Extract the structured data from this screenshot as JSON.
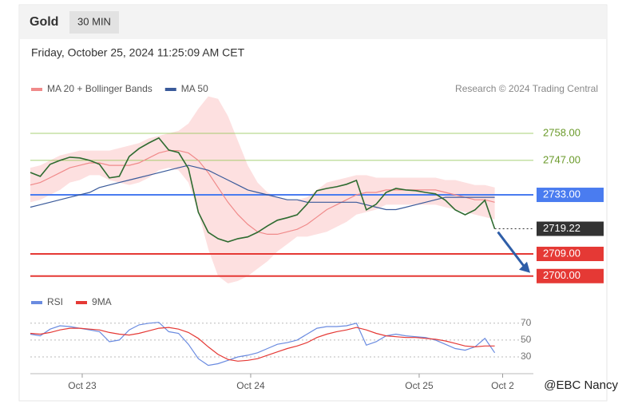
{
  "header": {
    "title": "Gold",
    "timeframe": "30 MIN",
    "timestamp": "Friday, October 25, 2024 11:25:09 AM CET",
    "credit": "Research © 2024 Trading Central",
    "watermark": "@EBC Nancy"
  },
  "chart_data": [
    {
      "type": "line",
      "xlim": [
        0,
        48
      ],
      "ylim": [
        2697,
        2770
      ],
      "price": {
        "color": "#2e6b30",
        "values": [
          2742.1,
          2740.5,
          2745.4,
          2747,
          2748.3,
          2748,
          2747,
          2745.4,
          2739.9,
          2740.5,
          2748.6,
          2751.8,
          2754.1,
          2756.1,
          2751.2,
          2750.2,
          2743.7,
          2725.9,
          2717.8,
          2715.2,
          2713.9,
          2715.2,
          2715.9,
          2717.8,
          2720.4,
          2722.7,
          2723.7,
          2724.9,
          2729.2,
          2734.7,
          2735.6,
          2736.3,
          2737.3,
          2738.9,
          2726.9,
          2729.2,
          2734,
          2735.6,
          2735,
          2734.7,
          2734,
          2733.4,
          2730.8,
          2726.9,
          2724.9,
          2726.9,
          2730.8,
          2719.2
        ]
      },
      "series": [
        {
          "name": "MA 20 + Bollinger Bands",
          "color": "#f08a8a",
          "band_color": "#fcd6d6",
          "values": [
            2737,
            2738,
            2740,
            2742,
            2744,
            2745,
            2746,
            2746,
            2745,
            2745,
            2745,
            2746,
            2748,
            2750,
            2751,
            2751,
            2750,
            2747,
            2742,
            2736,
            2730,
            2725,
            2721,
            2718,
            2717,
            2717,
            2718,
            2719,
            2721,
            2724,
            2727,
            2729,
            2731,
            2733,
            2734,
            2734,
            2735,
            2735,
            2735,
            2735,
            2735,
            2735,
            2734,
            2733,
            2732,
            2731,
            2731,
            2730
          ],
          "upper": [
            2744,
            2745,
            2747,
            2749,
            2750,
            2751,
            2751,
            2751,
            2751,
            2752,
            2753,
            2754,
            2756,
            2757,
            2758,
            2759,
            2762,
            2768,
            2773,
            2772,
            2765,
            2755,
            2745,
            2738,
            2734,
            2732,
            2731,
            2731,
            2732,
            2735,
            2738,
            2739,
            2740,
            2741,
            2741,
            2740,
            2740,
            2740,
            2740,
            2740,
            2740,
            2740,
            2739,
            2739,
            2738,
            2737,
            2737,
            2736
          ],
          "lower": [
            2730,
            2731,
            2733,
            2735,
            2738,
            2739,
            2741,
            2741,
            2739,
            2738,
            2737,
            2738,
            2740,
            2743,
            2744,
            2743,
            2738,
            2726,
            2711,
            2700,
            2697,
            2698,
            2700,
            2703,
            2706,
            2710,
            2713,
            2716,
            2716,
            2717,
            2718,
            2720,
            2722,
            2725,
            2726,
            2727,
            2729,
            2729,
            2729,
            2729,
            2729,
            2729,
            2728,
            2727,
            2726,
            2725,
            2724,
            2723
          ]
        },
        {
          "name": "MA 50",
          "color": "#3a5a9a",
          "values": [
            2728,
            2729,
            2730,
            2731,
            2732,
            2733,
            2734,
            2736,
            2737,
            2738,
            2739,
            2740,
            2741,
            2742,
            2743,
            2744,
            2745,
            2744,
            2743,
            2741,
            2739,
            2737,
            2735,
            2734,
            2733,
            2732,
            2731,
            2731,
            2730,
            2730,
            2730,
            2730,
            2730,
            2730,
            2729,
            2728,
            2727,
            2727,
            2728,
            2729,
            2730,
            2731,
            2732,
            2732,
            2732,
            2732,
            2732,
            2732
          ]
        }
      ],
      "levels": [
        {
          "value": 2758,
          "label": "2758.00",
          "color": "#8bc34a",
          "style": "thin"
        },
        {
          "value": 2747,
          "label": "2747.00",
          "color": "#8bc34a",
          "style": "thin"
        },
        {
          "value": 2733,
          "label": "2733.00",
          "color": "#4a7cf0",
          "style": "box"
        },
        {
          "value": 2719.22,
          "label": "2719.22",
          "color": "#333333",
          "style": "dotted"
        },
        {
          "value": 2709,
          "label": "2709.00",
          "color": "#e53935",
          "style": "box"
        },
        {
          "value": 2700,
          "label": "2700.00",
          "color": "#e53935",
          "style": "box"
        }
      ]
    },
    {
      "type": "line",
      "xlim": [
        0,
        48
      ],
      "ylim": [
        13,
        84
      ],
      "yticks": [
        30,
        50,
        70
      ],
      "xticks": [
        {
          "value": 5.25,
          "label": "Oct 23"
        },
        {
          "value": 22.3,
          "label": "Oct 24"
        },
        {
          "value": 39.35,
          "label": "Oct 25"
        },
        {
          "value": 47.8,
          "label": "Oct 2"
        }
      ],
      "series": [
        {
          "name": "RSI",
          "color": "#6a8be0",
          "values": [
            57,
            55,
            63,
            67,
            66,
            64,
            62,
            60,
            48,
            50,
            62,
            68,
            70,
            71,
            60,
            58,
            45,
            28,
            20,
            22,
            26,
            30,
            32,
            35,
            40,
            45,
            47,
            50,
            57,
            64,
            66,
            66,
            67,
            70,
            44,
            48,
            55,
            57,
            55,
            54,
            53,
            50,
            45,
            40,
            38,
            42,
            52,
            35
          ]
        },
        {
          "name": "9MA",
          "color": "#e53935",
          "values": [
            58,
            57,
            59,
            62,
            64,
            64,
            63,
            62,
            59,
            57,
            56,
            58,
            61,
            64,
            65,
            63,
            59,
            52,
            42,
            33,
            27,
            25,
            26,
            28,
            32,
            36,
            40,
            43,
            47,
            53,
            57,
            60,
            62,
            65,
            62,
            58,
            55,
            54,
            53,
            53,
            52,
            51,
            49,
            46,
            43,
            42,
            43,
            43
          ]
        }
      ]
    }
  ]
}
